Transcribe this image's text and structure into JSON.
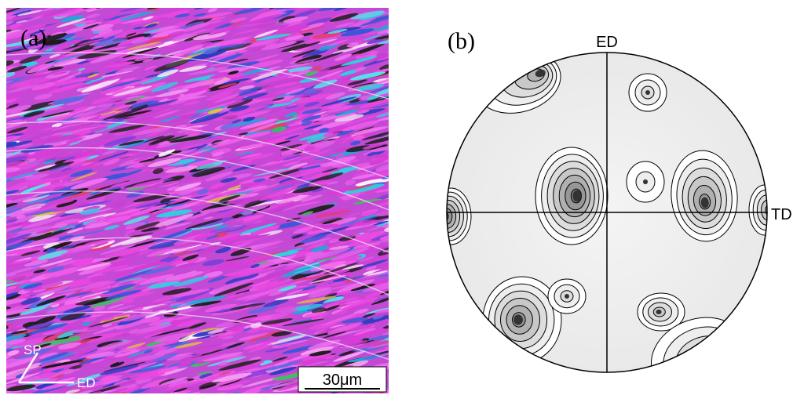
{
  "panel_a": {
    "label": "(a)",
    "scale_bar": "30μm",
    "direction_labels": {
      "normal": "SP",
      "extrusion": "ED"
    }
  },
  "panel_b": {
    "label": "(b)",
    "axes": {
      "vertical": "ED",
      "horizontal": "TD"
    },
    "pole_maxima": [
      {
        "name": "upper-left",
        "level": 5
      },
      {
        "name": "upper-right-small",
        "level": 3
      },
      {
        "name": "center-left",
        "level": 7
      },
      {
        "name": "center-right-small",
        "level": 2
      },
      {
        "name": "center-right",
        "level": 6
      },
      {
        "name": "left-edge",
        "level": 7
      },
      {
        "name": "right-edge",
        "level": 5
      },
      {
        "name": "lower-left",
        "level": 6
      },
      {
        "name": "lower-left-small",
        "level": 3
      },
      {
        "name": "lower-right-small",
        "level": 4
      },
      {
        "name": "lower-right",
        "level": 5
      }
    ]
  },
  "colors": {
    "magenta": "#e040e8",
    "blue": "#3a4fd0",
    "cyan": "#2fd6e0",
    "contour": "#000000",
    "shade_dark": "#333333"
  }
}
